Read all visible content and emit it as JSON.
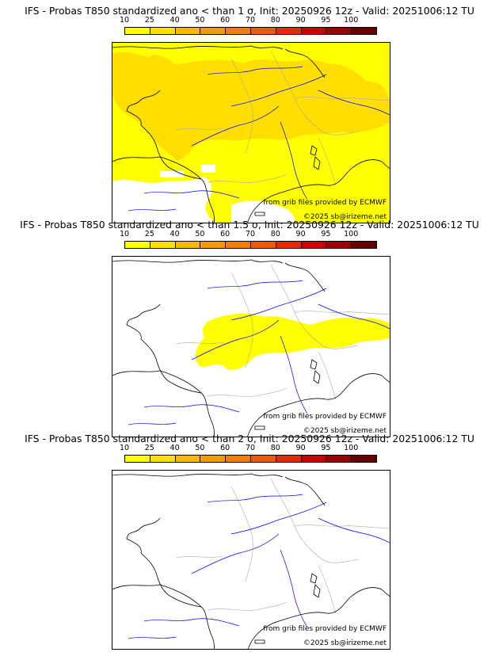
{
  "colors": {
    "bins": [
      "#ffff00",
      "#ffde00",
      "#f7b800",
      "#f59b00",
      "#f27d00",
      "#ee5a00",
      "#e52a00",
      "#cc0000",
      "#990000",
      "#660000"
    ],
    "coast": "#000000",
    "rivers": "#0000ff",
    "borders": "#aaaaaa"
  },
  "colorbar_ticks": [
    "10",
    "25",
    "40",
    "50",
    "60",
    "70",
    "80",
    "90",
    "95",
    "100"
  ],
  "panels": [
    {
      "title": "IFS - Probas T850  standardized ano < than 1 σ, Init: 20250926 12z - Valid: 20251006:12 TU",
      "credit_source": "from grib files provided by ECMWF",
      "credit_copyright": "©2025 sb@irizeme.net",
      "coverage": "extensive"
    },
    {
      "title": "IFS - Probas T850  standardized ano < than 1.5 σ, Init: 20250926 12z - Valid: 20251006:12 TU",
      "credit_source": "from grib files provided by ECMWF",
      "credit_copyright": "©2025 sb@irizeme.net",
      "coverage": "partial"
    },
    {
      "title": "IFS - Probas T850  standardized ano < than 2 σ, Init: 20250926 12z - Valid: 20251006:12 TU",
      "credit_source": "from grib files provided by ECMWF",
      "credit_copyright": "©2025 sb@irizeme.net",
      "coverage": "none"
    }
  ]
}
